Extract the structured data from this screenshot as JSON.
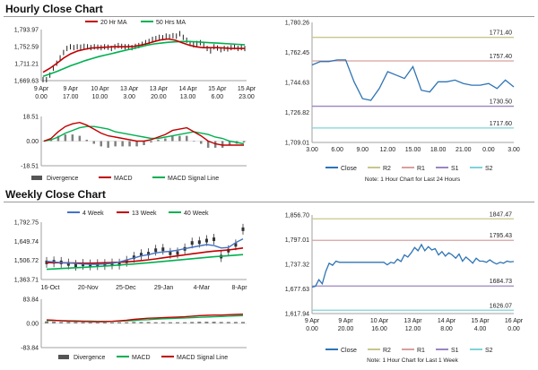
{
  "hourly": {
    "title": "Hourly Close Chart",
    "price_legend": [
      "20 Hr MA",
      "50 Hrs MA"
    ],
    "macd_legend": [
      "Divergence",
      "MACD",
      "MACD Signal Line"
    ],
    "close_legend": [
      "Close",
      "R2",
      "R1",
      "S1",
      "S2"
    ],
    "note": "Note: 1 Hour Chart for Last 24 Hours"
  },
  "weekly": {
    "title": "Weekly Close Chart",
    "price_legend": [
      "4 Week",
      "13 Week",
      "40 Week"
    ],
    "macd_legend": [
      "Divergence",
      "MACD",
      "MACD Signal Line"
    ],
    "close_legend": [
      "Close",
      "R2",
      "R1",
      "S1",
      "S2"
    ],
    "note": "Note: 1 Hour Chart for Last 1 Week"
  },
  "colors": {
    "close": "#2e74b5",
    "ma_short": "#c00000",
    "ma_long": "#00b050",
    "ma_4w": "#4472c4",
    "divergence": "#808080",
    "r2": "#c9c68a",
    "r1": "#d8a0a0",
    "s1": "#9b85c2",
    "s2": "#7fd3d8",
    "axis": "#a0a0a0"
  },
  "chart_data": [
    {
      "id": "hourly-price",
      "type": "line",
      "x_ticks": [
        "9 Apr\n0.00",
        "9 Apr\n17.00",
        "10 Apr\n10.00",
        "13 Apr\n3.00",
        "13 Apr\n20.00",
        "14 Apr\n13.00",
        "15 Apr\n6.00",
        "15 Apr\n23.00"
      ],
      "y_ticks": [
        "1,669.63",
        "1,711.21",
        "1,752.59",
        "1,793.97"
      ],
      "ylim": [
        1669.63,
        1793.97
      ],
      "price": [
        1672,
        1672,
        1683,
        1700,
        1712,
        1725,
        1738,
        1748,
        1752,
        1750,
        1752,
        1751,
        1753,
        1752,
        1750,
        1752,
        1751,
        1750,
        1752,
        1751,
        1748,
        1752,
        1755,
        1753,
        1752,
        1752,
        1750,
        1753,
        1755,
        1758,
        1762,
        1765,
        1770,
        1772,
        1775,
        1774,
        1778,
        1776,
        1779,
        1778,
        1784,
        1775,
        1768,
        1760,
        1757,
        1760,
        1762,
        1758,
        1748,
        1742,
        1752,
        1749,
        1745,
        1748,
        1747,
        1750,
        1752,
        1748,
        1750,
        1748
      ],
      "series": [
        {
          "name": "20 Hr MA",
          "values": [
            1690,
            1700,
            1712,
            1725,
            1735,
            1742,
            1746,
            1749,
            1750,
            1751,
            1752,
            1752,
            1752,
            1753,
            1756,
            1760,
            1765,
            1769,
            1771,
            1768,
            1762,
            1756,
            1752,
            1750,
            1750,
            1750,
            1749,
            1748,
            1748,
            1748
          ]
        },
        {
          "name": "50 Hrs MA",
          "values": [
            1680,
            1686,
            1692,
            1699,
            1706,
            1712,
            1718,
            1723,
            1728,
            1732,
            1736,
            1740,
            1744,
            1748,
            1752,
            1756,
            1759,
            1761,
            1763,
            1764,
            1765,
            1765,
            1764,
            1763,
            1762,
            1761,
            1760,
            1759,
            1758,
            1757
          ]
        }
      ]
    },
    {
      "id": "hourly-macd",
      "type": "line",
      "y_ticks": [
        "-18.51",
        "0.00",
        "18.51"
      ],
      "ylim": [
        -18.51,
        18.51
      ],
      "series": [
        {
          "name": "MACD",
          "values": [
            0,
            2,
            7,
            11,
            13,
            14,
            12,
            9,
            6,
            4,
            3,
            2,
            1,
            0,
            0,
            1,
            3,
            5,
            8,
            9,
            10,
            7,
            4,
            0,
            -2,
            -3,
            -3,
            -3,
            -3
          ]
        },
        {
          "name": "MACD Signal Line",
          "values": [
            0,
            1,
            3,
            6,
            8,
            10,
            11,
            11,
            10,
            9,
            7,
            6,
            5,
            4,
            3,
            2,
            2,
            3,
            4,
            5,
            6,
            7,
            6,
            5,
            3,
            2,
            0,
            -1,
            -2
          ]
        }
      ],
      "divergence": [
        0,
        1,
        4,
        5,
        5,
        4,
        1,
        -2,
        -4,
        -5,
        -4,
        -4,
        -4,
        -4,
        -3,
        -1,
        1,
        2,
        4,
        4,
        4,
        0,
        -2,
        -5,
        -5,
        -5,
        -3,
        -2,
        -1
      ]
    },
    {
      "id": "hourly-close",
      "type": "line",
      "x_ticks": [
        "3.00",
        "6.00",
        "9.00",
        "12.00",
        "15.00",
        "18.00",
        "21.00",
        "0.00",
        "3.00"
      ],
      "y_ticks": [
        "1,709.01",
        "1,726.82",
        "1,744.63",
        "1,762.45",
        "1,780.26"
      ],
      "ylim": [
        1709.01,
        1780.26
      ],
      "close": [
        1755,
        1757,
        1757,
        1758,
        1758,
        1745,
        1735,
        1734,
        1741,
        1751,
        1749,
        1747,
        1754,
        1740,
        1739,
        1745,
        1745,
        1746,
        1744,
        1743,
        1743,
        1744,
        1741,
        1746,
        1742
      ],
      "levels": [
        {
          "name": "R2",
          "label": "1771.40",
          "value": 1771.4
        },
        {
          "name": "R1",
          "label": "1757.40",
          "value": 1757.4
        },
        {
          "name": "S1",
          "label": "1730.50",
          "value": 1730.5
        },
        {
          "name": "S2",
          "label": "1717.60",
          "value": 1717.6
        }
      ]
    },
    {
      "id": "weekly-price",
      "type": "line",
      "x_ticks": [
        "16-Oct",
        "20-Nov",
        "25-Dec",
        "29-Jan",
        "4-Mar",
        "8-Apr"
      ],
      "y_ticks": [
        "1,363.71",
        "1,506.72",
        "1,649.74",
        "1,792.75"
      ],
      "ylim": [
        1363.71,
        1792.75
      ],
      "weekly_close": [
        1492,
        1496,
        1492,
        1480,
        1470,
        1477,
        1473,
        1475,
        1476,
        1480,
        1479,
        1500,
        1530,
        1550,
        1557,
        1583,
        1590,
        1560,
        1562,
        1593,
        1637,
        1643,
        1655,
        1665,
        1535,
        1580,
        1623,
        1740
      ],
      "series": [
        {
          "name": "4 Week",
          "values": [
            1500,
            1495,
            1490,
            1487,
            1484,
            1480,
            1478,
            1478,
            1480,
            1485,
            1495,
            1510,
            1525,
            1540,
            1550,
            1563,
            1570,
            1575,
            1583,
            1595,
            1605,
            1615,
            1625,
            1618,
            1600,
            1604,
            1640,
            1668
          ]
        },
        {
          "name": "13 Week",
          "values": [
            1490,
            1490,
            1489,
            1488,
            1487,
            1486,
            1486,
            1487,
            1489,
            1491,
            1493,
            1496,
            1500,
            1505,
            1511,
            1518,
            1526,
            1533,
            1541,
            1548,
            1556,
            1563,
            1570,
            1576,
            1580,
            1585,
            1592,
            1600
          ]
        },
        {
          "name": "40 Week",
          "values": [
            1440,
            1443,
            1446,
            1449,
            1452,
            1455,
            1458,
            1461,
            1464,
            1468,
            1472,
            1476,
            1480,
            1485,
            1489,
            1494,
            1499,
            1504,
            1509,
            1514,
            1519,
            1524,
            1529,
            1534,
            1538,
            1542,
            1546,
            1550
          ]
        }
      ]
    },
    {
      "id": "weekly-macd",
      "type": "line",
      "y_ticks": [
        "-83.84",
        "0.00",
        "83.84"
      ],
      "ylim": [
        -83.84,
        83.84
      ],
      "series": [
        {
          "name": "MACD",
          "values": [
            12,
            11,
            9,
            8,
            7,
            7,
            6,
            6,
            6,
            7,
            9,
            11,
            14,
            16,
            18,
            19,
            20,
            21,
            22,
            23,
            25,
            27,
            28,
            29,
            29,
            30,
            31,
            32
          ]
        },
        {
          "name": "MACD Signal Line",
          "values": [
            10,
            10,
            10,
            9,
            9,
            8,
            8,
            7,
            7,
            7,
            8,
            9,
            10,
            12,
            13,
            15,
            16,
            17,
            18,
            19,
            20,
            21,
            22,
            23,
            24,
            25,
            26,
            27
          ]
        }
      ],
      "divergence": [
        7,
        6,
        5,
        5,
        4,
        4,
        3,
        3,
        3,
        3,
        4,
        4,
        5,
        5,
        5,
        4,
        4,
        4,
        4,
        4,
        5,
        6,
        6,
        6,
        5,
        5,
        5,
        5
      ]
    },
    {
      "id": "weekly-close",
      "type": "line",
      "x_ticks": [
        "9 Apr\n0.00",
        "9 Apr\n20.00",
        "10 Apr\n16.00",
        "13 Apr\n12.00",
        "14 Apr\n8.00",
        "15 Apr\n4.00",
        "16 Apr\n0.00"
      ],
      "y_ticks": [
        "1,617.94",
        "1,677.63",
        "1,737.32",
        "1,797.01",
        "1,856.70"
      ],
      "ylim": [
        1617.94,
        1856.7
      ],
      "close": [
        1682,
        1684,
        1700,
        1690,
        1720,
        1740,
        1735,
        1745,
        1742,
        1742,
        1742,
        1742,
        1742,
        1742,
        1742,
        1742,
        1742,
        1742,
        1742,
        1742,
        1742,
        1742,
        1736,
        1742,
        1740,
        1750,
        1744,
        1760,
        1755,
        1765,
        1778,
        1770,
        1785,
        1770,
        1780,
        1772,
        1775,
        1760,
        1768,
        1757,
        1765,
        1760,
        1752,
        1762,
        1745,
        1755,
        1748,
        1740,
        1752,
        1745,
        1745,
        1742,
        1748,
        1742,
        1738,
        1742,
        1740,
        1745,
        1743,
        1744
      ],
      "levels": [
        {
          "name": "R2",
          "label": "1847.47",
          "value": 1847.47
        },
        {
          "name": "R1",
          "label": "1795.43",
          "value": 1795.43
        },
        {
          "name": "S1",
          "label": "1684.73",
          "value": 1684.73
        },
        {
          "name": "S2",
          "label": "1626.07",
          "value": 1626.07
        }
      ]
    }
  ]
}
